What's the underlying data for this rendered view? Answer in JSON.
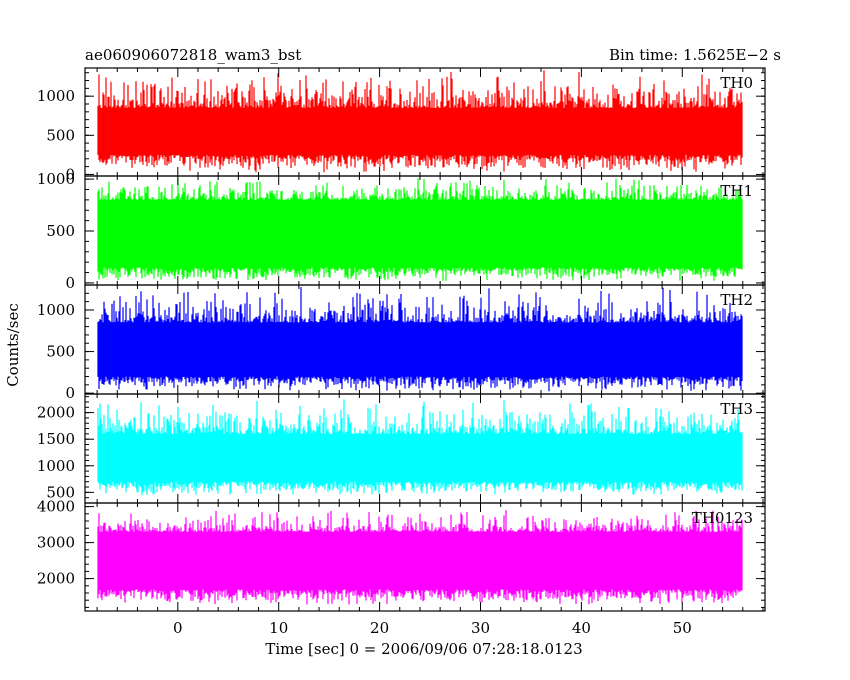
{
  "header": {
    "left_title": "ae060906072818_wam3_bst",
    "right_title": "Bin time: 1.5625E−2 s"
  },
  "chart_data": {
    "type": "line",
    "xlabel": "Time [sec] 0 = 2006/09/06 07:28:18.0123",
    "ylabel": "Counts/sec",
    "xlim": [
      -9.2,
      58.2
    ],
    "x_data_range": [
      -8.0,
      56.0
    ],
    "bin_time_s": 0.015625,
    "x_ticks": [
      0,
      10,
      20,
      30,
      40,
      50
    ],
    "x_tick_labels": [
      "0",
      "10",
      "20",
      "30",
      "40",
      "50"
    ],
    "grid": false,
    "panels": [
      {
        "name": "TH0",
        "color": "#ff0000",
        "ylim": [
          -20,
          1360
        ],
        "y_ticks": [
          0,
          500,
          1000
        ],
        "y_tick_labels": [
          "0",
          "500",
          "1000"
        ],
        "typical_range": [
          250,
          850
        ],
        "envelope": [
          20,
          1360
        ]
      },
      {
        "name": "TH1",
        "color": "#00ff00",
        "ylim": [
          -20,
          1030
        ],
        "y_ticks": [
          0,
          500,
          1000
        ],
        "y_tick_labels": [
          "0",
          "500",
          "1000"
        ],
        "typical_range": [
          150,
          800
        ],
        "envelope": [
          10,
          1030
        ]
      },
      {
        "name": "TH2",
        "color": "#0000ff",
        "ylim": [
          -10,
          1300
        ],
        "y_ticks": [
          0,
          500,
          1000
        ],
        "y_tick_labels": [
          "0",
          "500",
          "1000"
        ],
        "typical_range": [
          200,
          850
        ],
        "envelope": [
          20,
          1290
        ]
      },
      {
        "name": "TH3",
        "color": "#00ffff",
        "ylim": [
          300,
          2350
        ],
        "y_ticks": [
          500,
          1000,
          1500,
          2000
        ],
        "y_tick_labels": [
          "500",
          "1000",
          "1500",
          "2000"
        ],
        "typical_range": [
          700,
          1600
        ],
        "envelope": [
          430,
          2300
        ]
      },
      {
        "name": "TH0123",
        "color": "#ff00ff",
        "ylim": [
          1100,
          4100
        ],
        "y_ticks": [
          2000,
          3000,
          4000
        ],
        "y_tick_labels": [
          "2000",
          "3000",
          "4000"
        ],
        "typical_range": [
          1700,
          3300
        ],
        "envelope": [
          1250,
          4000
        ]
      }
    ]
  }
}
